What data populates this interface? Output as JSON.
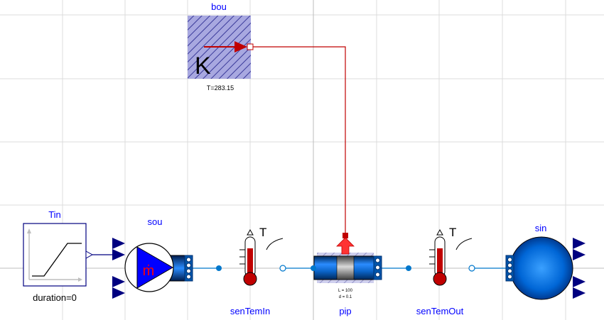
{
  "components": {
    "bou": {
      "name": "bou",
      "param": "T=283.15",
      "glyph": "K"
    },
    "tin": {
      "name": "Tin",
      "param": "duration=0"
    },
    "sou": {
      "name": "sou",
      "glyph": "ṁ"
    },
    "senTemIn": {
      "name": "senTemIn",
      "glyph": "T"
    },
    "pip": {
      "name": "pip",
      "param1": "L = 100",
      "param2": "d = 0.1"
    },
    "senTemOut": {
      "name": "senTemOut",
      "glyph": "T"
    },
    "sin": {
      "name": "sin"
    }
  },
  "colors": {
    "label": "#0000ff",
    "fluid_line": "#0077cc",
    "heat_line": "#c00000",
    "arrow": "#000080"
  }
}
